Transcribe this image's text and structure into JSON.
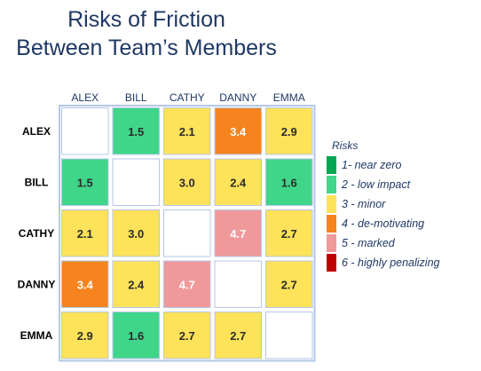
{
  "title": {
    "line1": "Risks of Friction",
    "line2": "Between Team’s Members"
  },
  "chart_data": {
    "type": "heatmap",
    "title": "Risks of Friction Between Team’s Members",
    "columns": [
      "ALEX",
      "BILL",
      "CATHY",
      "DANNY",
      "EMMA"
    ],
    "rows": [
      "ALEX",
      "BILL",
      "CATHY",
      "DANNY",
      "EMMA"
    ],
    "values": [
      [
        null,
        1.5,
        2.1,
        3.4,
        2.9
      ],
      [
        1.5,
        null,
        3.0,
        2.4,
        1.6
      ],
      [
        2.1,
        3.0,
        null,
        4.7,
        2.7
      ],
      [
        3.4,
        2.4,
        4.7,
        null,
        2.7
      ],
      [
        2.9,
        1.6,
        2.7,
        2.7,
        null
      ]
    ],
    "value_labels": [
      [
        "",
        "1.5",
        "2.1",
        "3.4",
        "2.9"
      ],
      [
        "1.5",
        "",
        "3.0",
        "2.4",
        "1.6"
      ],
      [
        "2.1",
        "3.0",
        "",
        "4.7",
        "2.7"
      ],
      [
        "3.4",
        "2.4",
        "4.7",
        "",
        "2.7"
      ],
      [
        "2.9",
        "1.6",
        "2.7",
        "2.7",
        ""
      ]
    ],
    "legend_position": "right"
  },
  "legend": {
    "title": "Risks",
    "items": [
      {
        "label": "1- near zero",
        "color": "#00a651"
      },
      {
        "label": "2 - low impact",
        "color": "#3fd68a"
      },
      {
        "label": "3 - minor",
        "color": "#fde25a"
      },
      {
        "label": "4 - de-motivating",
        "color": "#f5841f"
      },
      {
        "label": "5 - marked",
        "color": "#f0999a"
      },
      {
        "label": "6 - highly penalizing",
        "color": "#c00000"
      }
    ]
  },
  "colors": {
    "grid_border": "#b4c7e7",
    "text": "#1f3864"
  }
}
